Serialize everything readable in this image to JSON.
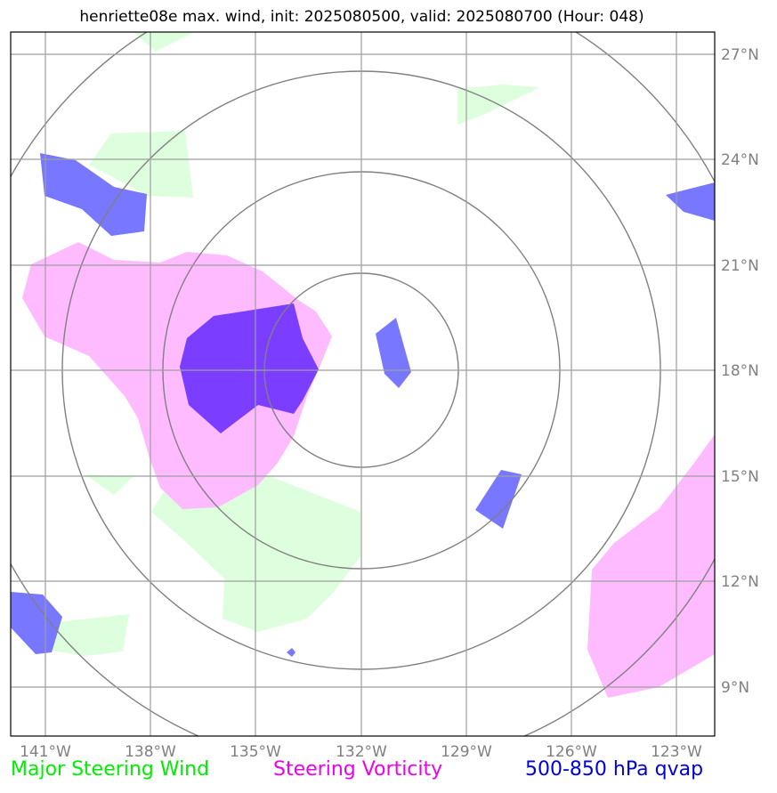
{
  "title": "henriette08e max. wind, init: 2025080500, valid: 2025080700 (Hour: 048)",
  "axes": {
    "lon_labels": [
      "141°W",
      "138°W",
      "135°W",
      "132°W",
      "129°W",
      "126°W",
      "123°W"
    ],
    "lat_labels": [
      "27°N",
      "24°N",
      "21°N",
      "18°N",
      "15°N",
      "12°N",
      "9°N"
    ]
  },
  "legend": {
    "wind": "Major Steering Wind",
    "vorticity": "Steering Vorticity",
    "qvap": "500-850 hPa qvap"
  },
  "colors": {
    "wind": "#00ee00",
    "vorticity": "#ee00ee",
    "qvap": "#0000dd",
    "wind_fill": "#ddffdd",
    "vort_fill": "#ffbbff",
    "qvap_fill": "#7777ff",
    "overlap_fill": "#7b3dff"
  }
}
